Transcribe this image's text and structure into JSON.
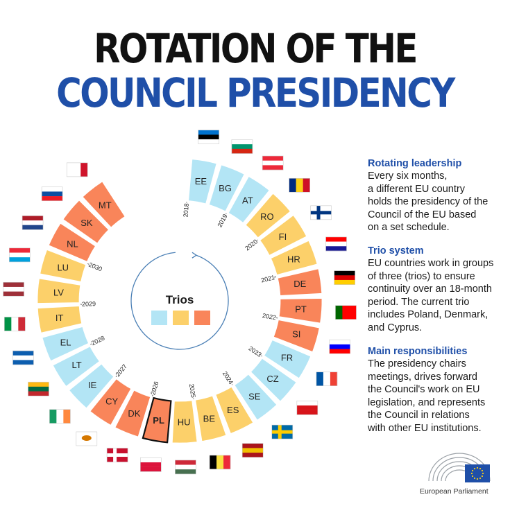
{
  "title": {
    "line1": "ROTATION OF THE",
    "line2": "COUNCIL PRESIDENCY"
  },
  "center": {
    "label": "Trios"
  },
  "colors": {
    "blue": "#b3e5f5",
    "yellow": "#fcd06a",
    "orange": "#f9855a",
    "title_blue": "#1f4fa8"
  },
  "presidencies": [
    {
      "code": "EE",
      "trio": "blue"
    },
    {
      "code": "BG",
      "trio": "blue"
    },
    {
      "code": "AT",
      "trio": "blue"
    },
    {
      "code": "RO",
      "trio": "yellow"
    },
    {
      "code": "FI",
      "trio": "yellow"
    },
    {
      "code": "HR",
      "trio": "yellow"
    },
    {
      "code": "DE",
      "trio": "orange"
    },
    {
      "code": "PT",
      "trio": "orange"
    },
    {
      "code": "SI",
      "trio": "orange"
    },
    {
      "code": "FR",
      "trio": "blue"
    },
    {
      "code": "CZ",
      "trio": "blue"
    },
    {
      "code": "SE",
      "trio": "blue"
    },
    {
      "code": "ES",
      "trio": "yellow"
    },
    {
      "code": "BE",
      "trio": "yellow"
    },
    {
      "code": "HU",
      "trio": "yellow"
    },
    {
      "code": "PL",
      "trio": "orange",
      "current": true
    },
    {
      "code": "DK",
      "trio": "orange"
    },
    {
      "code": "CY",
      "trio": "orange"
    },
    {
      "code": "IE",
      "trio": "blue"
    },
    {
      "code": "LT",
      "trio": "blue"
    },
    {
      "code": "EL",
      "trio": "blue"
    },
    {
      "code": "IT",
      "trio": "yellow"
    },
    {
      "code": "LV",
      "trio": "yellow"
    },
    {
      "code": "LU",
      "trio": "yellow"
    },
    {
      "code": "NL",
      "trio": "orange"
    },
    {
      "code": "SK",
      "trio": "orange"
    },
    {
      "code": "MT",
      "trio": "orange"
    }
  ],
  "years": [
    "2018",
    "2019",
    "2020",
    "2021",
    "2022",
    "2023",
    "2024",
    "2025",
    "2026",
    "2027",
    "2028",
    "2029",
    "2030"
  ],
  "side": [
    {
      "heading": "Rotating leadership",
      "lines": [
        "Every six months,",
        "a different EU country",
        "holds the presidency of the",
        "Council of the EU based",
        "on a set schedule."
      ]
    },
    {
      "heading": "Trio system",
      "lines": [
        "EU countries work in groups",
        "of three (trios) to ensure",
        "continuity over an 18-month",
        "period. The current trio",
        "includes Poland, Denmark,",
        "and Cyprus."
      ]
    },
    {
      "heading": "Main responsibilities",
      "lines": [
        "The presidency chairs",
        "meetings, drives forward",
        "the Council's work on EU",
        "legislation, and represents",
        "the Council in relations",
        "with other EU institutions."
      ]
    }
  ],
  "logo": {
    "caption": "European Parliament"
  }
}
